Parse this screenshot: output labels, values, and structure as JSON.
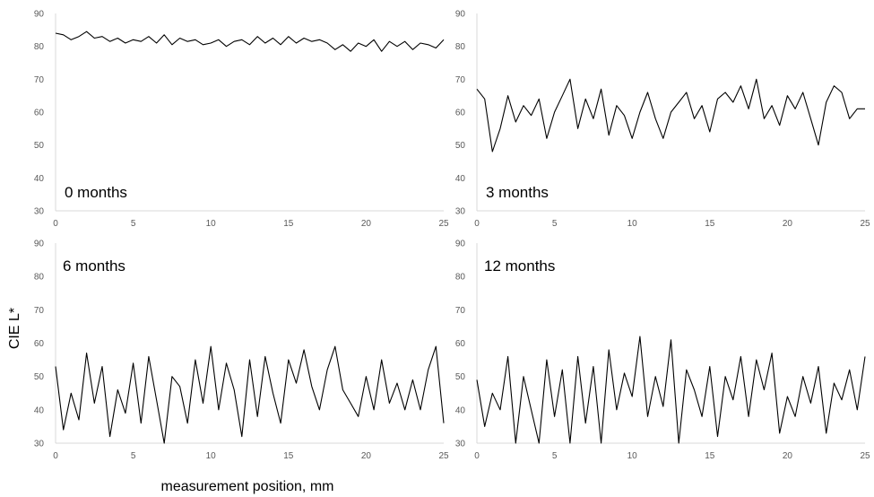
{
  "figure": {
    "ylabel": "CIE L*",
    "xlabel": "measurement position, mm"
  },
  "chart_data": [
    {
      "type": "line",
      "label": "0 months",
      "xlim": [
        0,
        25
      ],
      "ylim": [
        30,
        90
      ],
      "x_ticks": [
        0,
        5,
        10,
        15,
        20,
        25
      ],
      "y_ticks": [
        30,
        40,
        50,
        60,
        70,
        80,
        90
      ],
      "grid": false,
      "x": [
        0,
        0.5,
        1,
        1.5,
        2,
        2.5,
        3,
        3.5,
        4,
        4.5,
        5,
        5.5,
        6,
        6.5,
        7,
        7.5,
        8,
        8.5,
        9,
        9.5,
        10,
        10.5,
        11,
        11.5,
        12,
        12.5,
        13,
        13.5,
        14,
        14.5,
        15,
        15.5,
        16,
        16.5,
        17,
        17.5,
        18,
        18.5,
        19,
        19.5,
        20,
        20.5,
        21,
        21.5,
        22,
        22.5,
        23,
        23.5,
        24,
        24.5,
        25
      ],
      "values": [
        84,
        83.5,
        82,
        83,
        84.5,
        82.5,
        83,
        81.5,
        82.5,
        81,
        82,
        81.5,
        83,
        81,
        83.5,
        80.5,
        82.5,
        81.5,
        82,
        80.5,
        81,
        82,
        80,
        81.5,
        82,
        80.5,
        83,
        81,
        82.5,
        80.5,
        83,
        81,
        82.5,
        81.5,
        82,
        81,
        79,
        80.5,
        78.5,
        81,
        80,
        82,
        78.5,
        81.5,
        80,
        81.5,
        79,
        81,
        80.5,
        79.5,
        82
      ]
    },
    {
      "type": "line",
      "label": "3 months",
      "xlim": [
        0,
        25
      ],
      "ylim": [
        30,
        90
      ],
      "x_ticks": [
        0,
        5,
        10,
        15,
        20,
        25
      ],
      "y_ticks": [
        30,
        40,
        50,
        60,
        70,
        80,
        90
      ],
      "grid": false,
      "x": [
        0,
        0.5,
        1,
        1.5,
        2,
        2.5,
        3,
        3.5,
        4,
        4.5,
        5,
        5.5,
        6,
        6.5,
        7,
        7.5,
        8,
        8.5,
        9,
        9.5,
        10,
        10.5,
        11,
        11.5,
        12,
        12.5,
        13,
        13.5,
        14,
        14.5,
        15,
        15.5,
        16,
        16.5,
        17,
        17.5,
        18,
        18.5,
        19,
        19.5,
        20,
        20.5,
        21,
        21.5,
        22,
        22.5,
        23,
        23.5,
        24,
        24.5,
        25
      ],
      "values": [
        67,
        64,
        48,
        55,
        65,
        57,
        62,
        59,
        64,
        52,
        60,
        65,
        70,
        55,
        64,
        58,
        67,
        53,
        62,
        59,
        52,
        60,
        66,
        58,
        52,
        60,
        63,
        66,
        58,
        62,
        54,
        64,
        66,
        63,
        68,
        61,
        70,
        58,
        62,
        56,
        65,
        61,
        66,
        58,
        50,
        63,
        68,
        66,
        58,
        61,
        61
      ]
    },
    {
      "type": "line",
      "label": "6 months",
      "xlim": [
        0,
        25
      ],
      "ylim": [
        30,
        90
      ],
      "x_ticks": [
        0,
        5,
        10,
        15,
        20,
        25
      ],
      "y_ticks": [
        30,
        40,
        50,
        60,
        70,
        80,
        90
      ],
      "grid": false,
      "x": [
        0,
        0.5,
        1,
        1.5,
        2,
        2.5,
        3,
        3.5,
        4,
        4.5,
        5,
        5.5,
        6,
        6.5,
        7,
        7.5,
        8,
        8.5,
        9,
        9.5,
        10,
        10.5,
        11,
        11.5,
        12,
        12.5,
        13,
        13.5,
        14,
        14.5,
        15,
        15.5,
        16,
        16.5,
        17,
        17.5,
        18,
        18.5,
        19,
        19.5,
        20,
        20.5,
        21,
        21.5,
        22,
        22.5,
        23,
        23.5,
        24,
        24.5,
        25
      ],
      "values": [
        53,
        34,
        45,
        37,
        57,
        42,
        53,
        32,
        46,
        39,
        54,
        36,
        56,
        43,
        30,
        50,
        47,
        36,
        55,
        42,
        59,
        40,
        54,
        46,
        32,
        55,
        38,
        56,
        45,
        36,
        55,
        48,
        58,
        47,
        40,
        52,
        59,
        46,
        42,
        38,
        50,
        40,
        55,
        42,
        48,
        40,
        49,
        40,
        52,
        59,
        36
      ]
    },
    {
      "type": "line",
      "label": "12 months",
      "xlim": [
        0,
        25
      ],
      "ylim": [
        30,
        90
      ],
      "x_ticks": [
        0,
        5,
        10,
        15,
        20,
        25
      ],
      "y_ticks": [
        30,
        40,
        50,
        60,
        70,
        80,
        90
      ],
      "grid": false,
      "x": [
        0,
        0.5,
        1,
        1.5,
        2,
        2.5,
        3,
        3.5,
        4,
        4.5,
        5,
        5.5,
        6,
        6.5,
        7,
        7.5,
        8,
        8.5,
        9,
        9.5,
        10,
        10.5,
        11,
        11.5,
        12,
        12.5,
        13,
        13.5,
        14,
        14.5,
        15,
        15.5,
        16,
        16.5,
        17,
        17.5,
        18,
        18.5,
        19,
        19.5,
        20,
        20.5,
        21,
        21.5,
        22,
        22.5,
        23,
        23.5,
        24,
        24.5,
        25
      ],
      "values": [
        49,
        35,
        45,
        40,
        56,
        30,
        50,
        40,
        30,
        55,
        38,
        52,
        30,
        56,
        36,
        53,
        30,
        58,
        40,
        51,
        44,
        62,
        38,
        50,
        41,
        61,
        30,
        52,
        46,
        38,
        53,
        32,
        50,
        43,
        56,
        38,
        55,
        46,
        57,
        33,
        44,
        38,
        50,
        42,
        53,
        33,
        48,
        43,
        52,
        40,
        56
      ]
    }
  ]
}
